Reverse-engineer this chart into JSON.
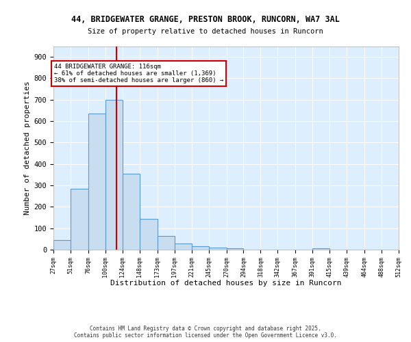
{
  "title1": "44, BRIDGEWATER GRANGE, PRESTON BROOK, RUNCORN, WA7 3AL",
  "title2": "Size of property relative to detached houses in Runcorn",
  "xlabel": "Distribution of detached houses by size in Runcorn",
  "ylabel": "Number of detached properties",
  "bins": [
    27,
    51,
    76,
    100,
    124,
    148,
    173,
    197,
    221,
    245,
    270,
    294,
    318,
    342,
    367,
    391,
    415,
    439,
    464,
    488,
    512
  ],
  "counts": [
    44,
    283,
    634,
    700,
    354,
    144,
    65,
    30,
    15,
    10,
    7,
    0,
    0,
    0,
    0,
    5,
    0,
    0,
    0,
    0
  ],
  "bar_facecolor": "#c9ddf0",
  "bar_edgecolor": "#5b9bd5",
  "vline_x": 116,
  "vline_color": "#cc0000",
  "annotation_title": "44 BRIDGEWATER GRANGE: 116sqm",
  "annotation_line1": "← 61% of detached houses are smaller (1,369)",
  "annotation_line2": "38% of semi-detached houses are larger (860) →",
  "annotation_box_edgecolor": "#cc0000",
  "annotation_box_facecolor": "#ffffff",
  "ylim": [
    0,
    950
  ],
  "yticks": [
    0,
    100,
    200,
    300,
    400,
    500,
    600,
    700,
    800,
    900
  ],
  "background_color": "#ddeeff",
  "grid_color": "#ffffff",
  "fig_facecolor": "#ffffff",
  "footer1": "Contains HM Land Registry data © Crown copyright and database right 2025.",
  "footer2": "Contains public sector information licensed under the Open Government Licence v3.0."
}
